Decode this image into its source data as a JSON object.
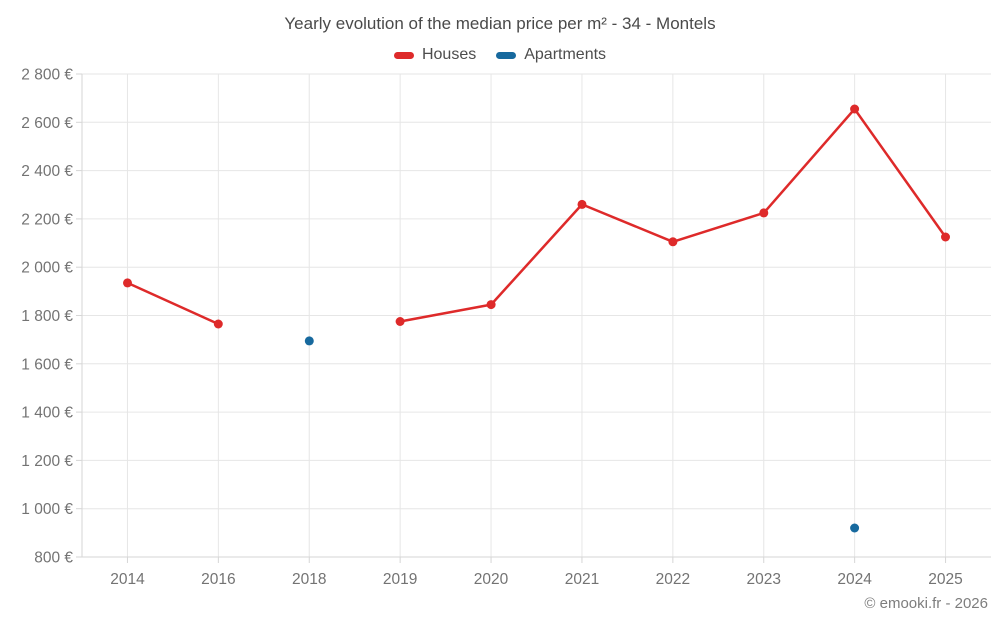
{
  "title": "Yearly evolution of the median price per m² - 34 - Montels",
  "footer": "© emooki.fr - 2026",
  "colors": {
    "houses": "#de2a2a",
    "apartments": "#17699e",
    "grid": "#e6e6e6",
    "axis": "#d6d6d6",
    "tick_label": "#737373",
    "title_text": "#4a4a4a",
    "footer_text": "#7d7d7d"
  },
  "chart_data": {
    "type": "line",
    "title": "Yearly evolution of the median price per m² - 34 - Montels",
    "categories": [
      "2014",
      "2016",
      "2018",
      "2019",
      "2020",
      "2021",
      "2022",
      "2023",
      "2024",
      "2025"
    ],
    "series": [
      {
        "name": "Houses",
        "color": "#de2a2a",
        "values": [
          1935,
          1765,
          null,
          1775,
          1845,
          2260,
          2105,
          2225,
          2655,
          2125
        ]
      },
      {
        "name": "Apartments",
        "color": "#17699e",
        "values": [
          null,
          null,
          1695,
          null,
          null,
          null,
          null,
          null,
          920,
          null
        ]
      }
    ],
    "ylim": [
      800,
      2800
    ],
    "y_tick_step": 200,
    "y_tick_labels": [
      "800 €",
      "1 000 €",
      "1 200 €",
      "1 400 €",
      "1 600 €",
      "1 800 €",
      "2 000 €",
      "2 200 €",
      "2 400 €",
      "2 600 €",
      "2 800 €"
    ],
    "grid": true,
    "legend_position": "top",
    "marker_radius": 4.5,
    "line_width": 2.5
  }
}
